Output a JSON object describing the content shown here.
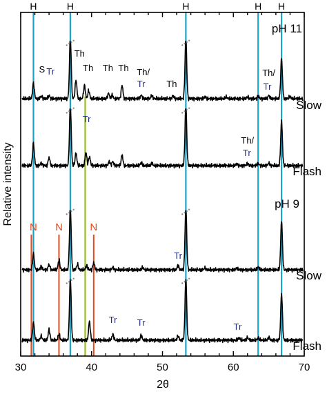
{
  "chart_data": {
    "type": "line",
    "xlabel": "2θ",
    "ylabel": "Relative intensity",
    "xlim": [
      30,
      70
    ],
    "x_ticks": [
      30,
      40,
      50,
      60,
      70
    ],
    "colors": {
      "H": "#1aa3c8",
      "N": "#e8471b",
      "Tr_mark": "#9bc23a",
      "Tr_text": "#1f2d8c",
      "trace": "#000000"
    },
    "reference_lines": {
      "H": {
        "label": "H",
        "x": [
          31.8,
          37.0,
          53.3,
          63.5,
          66.8
        ]
      },
      "N": {
        "label": "N",
        "x": [
          31.5,
          35.4,
          40.3
        ]
      },
      "Tr": {
        "x": [
          39.1
        ]
      }
    },
    "series": [
      {
        "name": "Slow",
        "group": "pH 11",
        "baseline": 0.0,
        "peaks": [
          {
            "x": 31.8,
            "h": 0.35
          },
          {
            "x": 32.9,
            "h": 0.06
          },
          {
            "x": 34.0,
            "h": 0.07
          },
          {
            "x": 37.0,
            "h": 1.4,
            "cut": true
          },
          {
            "x": 37.8,
            "h": 0.42
          },
          {
            "x": 39.0,
            "h": 0.3
          },
          {
            "x": 39.6,
            "h": 0.18
          },
          {
            "x": 42.4,
            "h": 0.12
          },
          {
            "x": 42.9,
            "h": 0.08
          },
          {
            "x": 44.3,
            "h": 0.3
          },
          {
            "x": 47.0,
            "h": 0.08
          },
          {
            "x": 48.5,
            "h": 0.07
          },
          {
            "x": 51.5,
            "h": 0.06
          },
          {
            "x": 53.3,
            "h": 1.4,
            "cut": true
          },
          {
            "x": 56.0,
            "h": 0.04
          },
          {
            "x": 59.0,
            "h": 0.04
          },
          {
            "x": 62.0,
            "h": 0.04
          },
          {
            "x": 63.5,
            "h": 0.06
          },
          {
            "x": 65.0,
            "h": 0.07
          },
          {
            "x": 66.8,
            "h": 0.9
          },
          {
            "x": 68.0,
            "h": 0.05
          }
        ]
      },
      {
        "name": "Flash",
        "group": "pH 11",
        "baseline": 0.0,
        "peaks": [
          {
            "x": 31.8,
            "h": 0.5
          },
          {
            "x": 32.9,
            "h": 0.06
          },
          {
            "x": 34.0,
            "h": 0.18
          },
          {
            "x": 37.0,
            "h": 1.4,
            "cut": true
          },
          {
            "x": 37.8,
            "h": 0.28
          },
          {
            "x": 39.2,
            "h": 0.3
          },
          {
            "x": 39.7,
            "h": 0.2
          },
          {
            "x": 42.5,
            "h": 0.09
          },
          {
            "x": 43.0,
            "h": 0.09
          },
          {
            "x": 44.3,
            "h": 0.24
          },
          {
            "x": 47.0,
            "h": 0.06
          },
          {
            "x": 48.5,
            "h": 0.05
          },
          {
            "x": 53.3,
            "h": 1.4,
            "cut": true
          },
          {
            "x": 60.5,
            "h": 0.04
          },
          {
            "x": 62.0,
            "h": 0.05
          },
          {
            "x": 63.5,
            "h": 0.05
          },
          {
            "x": 65.0,
            "h": 0.05
          },
          {
            "x": 66.8,
            "h": 1.0
          }
        ]
      },
      {
        "name": "Slow",
        "group": "pH 9",
        "baseline": 0.0,
        "peaks": [
          {
            "x": 31.8,
            "h": 0.36
          },
          {
            "x": 32.9,
            "h": 0.08
          },
          {
            "x": 34.0,
            "h": 0.12
          },
          {
            "x": 35.4,
            "h": 0.22
          },
          {
            "x": 37.0,
            "h": 1.4,
            "cut": true
          },
          {
            "x": 38.0,
            "h": 0.12
          },
          {
            "x": 39.3,
            "h": 0.1
          },
          {
            "x": 40.3,
            "h": 0.16
          },
          {
            "x": 43.0,
            "h": 0.05
          },
          {
            "x": 47.2,
            "h": 0.05
          },
          {
            "x": 52.2,
            "h": 0.1
          },
          {
            "x": 53.3,
            "h": 1.4,
            "cut": true
          },
          {
            "x": 56.0,
            "h": 0.04
          },
          {
            "x": 60.5,
            "h": 0.04
          },
          {
            "x": 63.5,
            "h": 0.06
          },
          {
            "x": 66.8,
            "h": 1.1
          }
        ]
      },
      {
        "name": "Flash",
        "group": "pH 9",
        "baseline": 0.0,
        "peaks": [
          {
            "x": 31.8,
            "h": 0.4
          },
          {
            "x": 32.9,
            "h": 0.09
          },
          {
            "x": 34.0,
            "h": 0.24
          },
          {
            "x": 35.4,
            "h": 0.14
          },
          {
            "x": 37.0,
            "h": 1.4,
            "cut": true
          },
          {
            "x": 39.7,
            "h": 0.42
          },
          {
            "x": 43.0,
            "h": 0.13
          },
          {
            "x": 47.0,
            "h": 0.11
          },
          {
            "x": 52.2,
            "h": 0.1
          },
          {
            "x": 53.3,
            "h": 1.4,
            "cut": true
          },
          {
            "x": 60.8,
            "h": 0.05
          },
          {
            "x": 62.0,
            "h": 0.06
          },
          {
            "x": 63.5,
            "h": 0.05
          },
          {
            "x": 65.0,
            "h": 0.06
          },
          {
            "x": 66.8,
            "h": 1.05
          }
        ]
      }
    ],
    "condition_labels": [
      "pH 11",
      "pH 9"
    ],
    "series_labels": [
      "Slow",
      "Flash",
      "Slow",
      "Flash"
    ],
    "top_labels": [
      "H",
      "H",
      "H",
      "H",
      "H"
    ],
    "n_labels": [
      "N",
      "N",
      "N"
    ],
    "phase_annotations": [
      {
        "text": "S",
        "color": "#000000",
        "series": 0,
        "x": 33.0
      },
      {
        "text": "Tr",
        "color": "#1f2d8c",
        "series": 0,
        "x": 34.2
      },
      {
        "text": "Th",
        "color": "#000000",
        "series": 0,
        "x": 38.3
      },
      {
        "text": "Th",
        "color": "#000000",
        "series": 0,
        "x": 39.5
      },
      {
        "text": "Th",
        "color": "#000000",
        "series": 0,
        "x": 42.3
      },
      {
        "text": "Th",
        "color": "#000000",
        "series": 0,
        "x": 44.5
      },
      {
        "text": "Th/",
        "color": "#000000",
        "series": 0,
        "x": 47.3
      },
      {
        "text": "Tr",
        "color": "#1f2d8c",
        "series": 0,
        "x": 47.0
      },
      {
        "text": "Th",
        "color": "#000000",
        "series": 0,
        "x": 51.3
      },
      {
        "text": "Th/",
        "color": "#000000",
        "series": 0,
        "x": 65.0
      },
      {
        "text": "Tr",
        "color": "#1f2d8c",
        "series": 0,
        "x": 64.8
      },
      {
        "text": "Tr",
        "color": "#1f2d8c",
        "series": 1,
        "x": 39.3
      },
      {
        "text": "Th/",
        "color": "#000000",
        "series": 1,
        "x": 62.0
      },
      {
        "text": "Tr",
        "color": "#1f2d8c",
        "series": 1,
        "x": 61.9
      },
      {
        "text": "Tr",
        "color": "#1f2d8c",
        "series": 2,
        "x": 52.2
      },
      {
        "text": "Tr",
        "color": "#1f2d8c",
        "series": 3,
        "x": 43.0
      },
      {
        "text": "Tr",
        "color": "#1f2d8c",
        "series": 3,
        "x": 47.0
      },
      {
        "text": "Tr",
        "color": "#1f2d8c",
        "series": 3,
        "x": 60.6
      }
    ]
  }
}
